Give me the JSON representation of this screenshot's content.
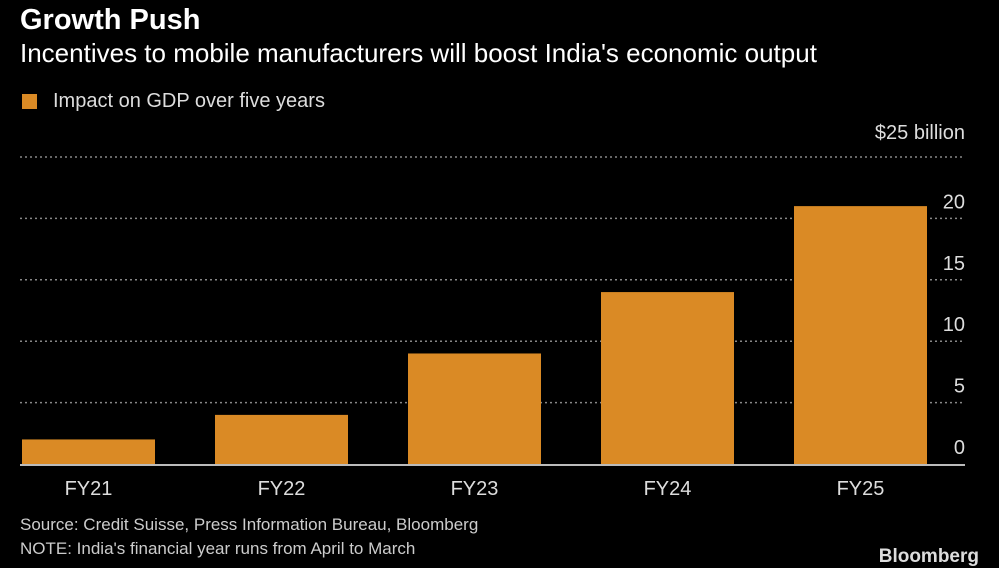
{
  "title": "Growth Push",
  "subtitle": "Incentives to mobile manufacturers will boost India's economic output",
  "source": "Source: Credit Suisse, Press Information Bureau, Bloomberg",
  "note": "NOTE: India's financial year runs from April to March",
  "logo": "Bloomberg",
  "colors": {
    "bar": "#DA8A25",
    "background": "#000000",
    "grid": "#888888"
  },
  "chart_data": {
    "type": "bar",
    "categories": [
      "FY21",
      "FY22",
      "FY23",
      "FY24",
      "FY25"
    ],
    "series": [
      {
        "name": "Impact on GDP over five years",
        "values": [
          2,
          4,
          9,
          14,
          21
        ]
      }
    ],
    "unit_label": "$25 billion",
    "yticks": [
      "0",
      "5",
      "10",
      "15",
      "20"
    ],
    "ylim": [
      0,
      25
    ],
    "grid": true,
    "y_axis_side": "right",
    "legend": "top-left"
  }
}
